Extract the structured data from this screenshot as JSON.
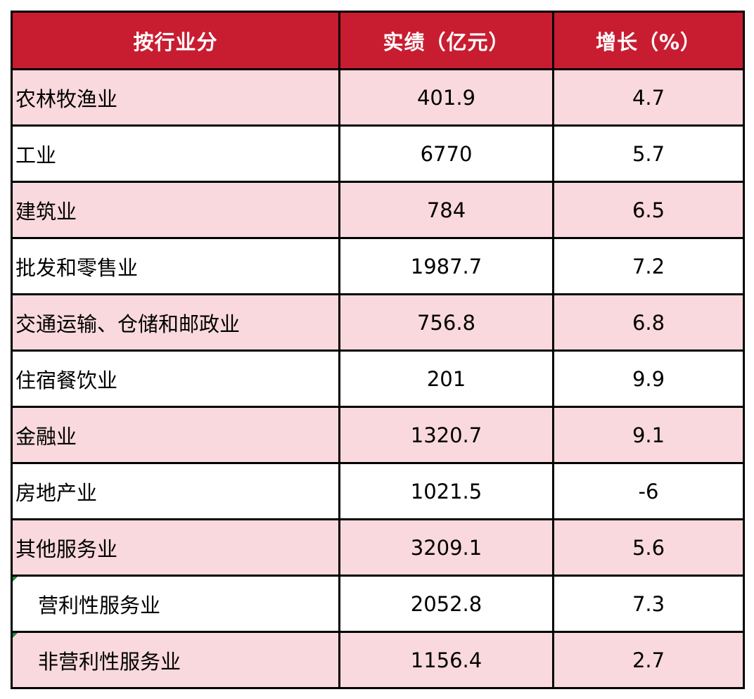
{
  "chart_data": {
    "type": "table",
    "columns": [
      "按行业分",
      "实绩（亿元）",
      "增长（%）"
    ],
    "rows": [
      {
        "industry": "农林牧渔业",
        "value": "401.9",
        "growth": "4.7",
        "indent": false
      },
      {
        "industry": "工业",
        "value": "6770",
        "growth": "5.7",
        "indent": false
      },
      {
        "industry": "建筑业",
        "value": "784",
        "growth": "6.5",
        "indent": false
      },
      {
        "industry": "批发和零售业",
        "value": "1987.7",
        "growth": "7.2",
        "indent": false
      },
      {
        "industry": "交通运输、仓储和邮政业",
        "value": "756.8",
        "growth": "6.8",
        "indent": false
      },
      {
        "industry": "住宿餐饮业",
        "value": "201",
        "growth": "9.9",
        "indent": false
      },
      {
        "industry": "金融业",
        "value": "1320.7",
        "growth": "9.1",
        "indent": false
      },
      {
        "industry": "房地产业",
        "value": "1021.5",
        "growth": "-6",
        "indent": false
      },
      {
        "industry": "其他服务业",
        "value": "3209.1",
        "growth": "5.6",
        "indent": false
      },
      {
        "industry": "营利性服务业",
        "value": "2052.8",
        "growth": "7.3",
        "indent": true
      },
      {
        "industry": "非营利性服务业",
        "value": "1156.4",
        "growth": "2.7",
        "indent": true
      }
    ]
  },
  "colors": {
    "header_bg": "#c81d31",
    "header_text": "#ffffff",
    "row_stripe": "#f9d9dd",
    "row_plain": "#ffffff",
    "border": "#000000",
    "corner_mark": "#1e8a3a"
  }
}
